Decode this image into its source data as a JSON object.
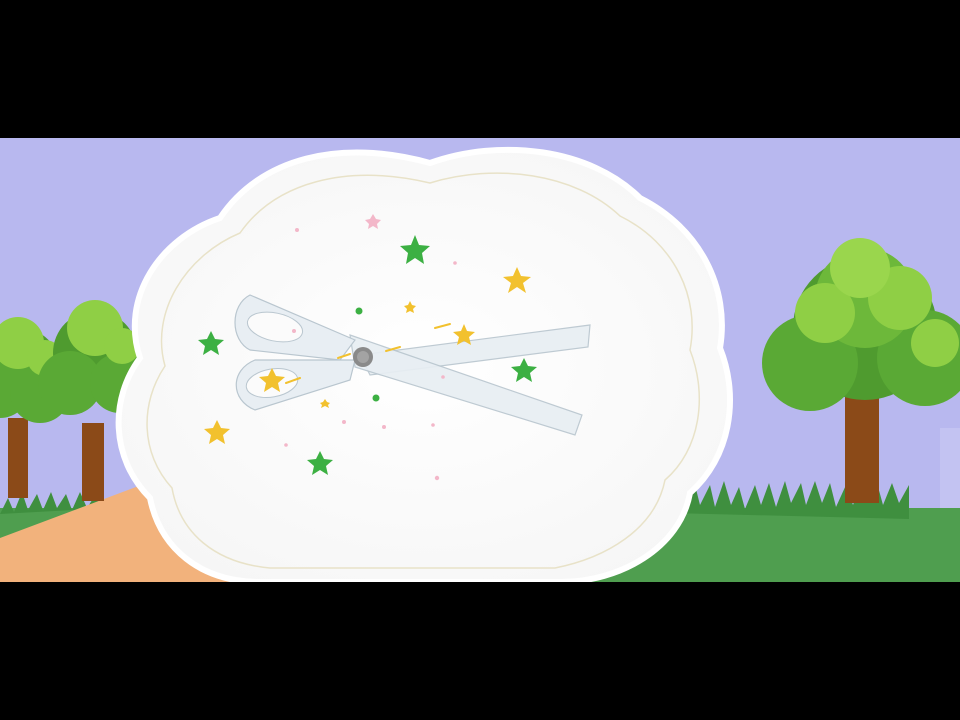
{
  "scene": {
    "letterbox_color": "#000000",
    "sky_color": "#b8b8ef",
    "grass_color": "#4f9e4f",
    "path_color": "#f2b27c",
    "cloud_fill": "#fbfbfb",
    "cloud_outline": "#e8e2c8"
  },
  "icons": {
    "scissors": "scissors-icon",
    "stars": "sparkle-stars",
    "trees": "tree-icon"
  },
  "colors": {
    "star_green": "#3cb043",
    "star_yellow": "#f2c12e",
    "star_pink": "#f3b7c9",
    "tree_leaf_dark": "#4f9b2f",
    "tree_leaf_light": "#8fcf45",
    "tree_trunk": "#8b4a18",
    "scissors_fill": "#e8eef3",
    "scissors_stroke": "#b9c6cf",
    "pivot": "#8a8a8a"
  }
}
